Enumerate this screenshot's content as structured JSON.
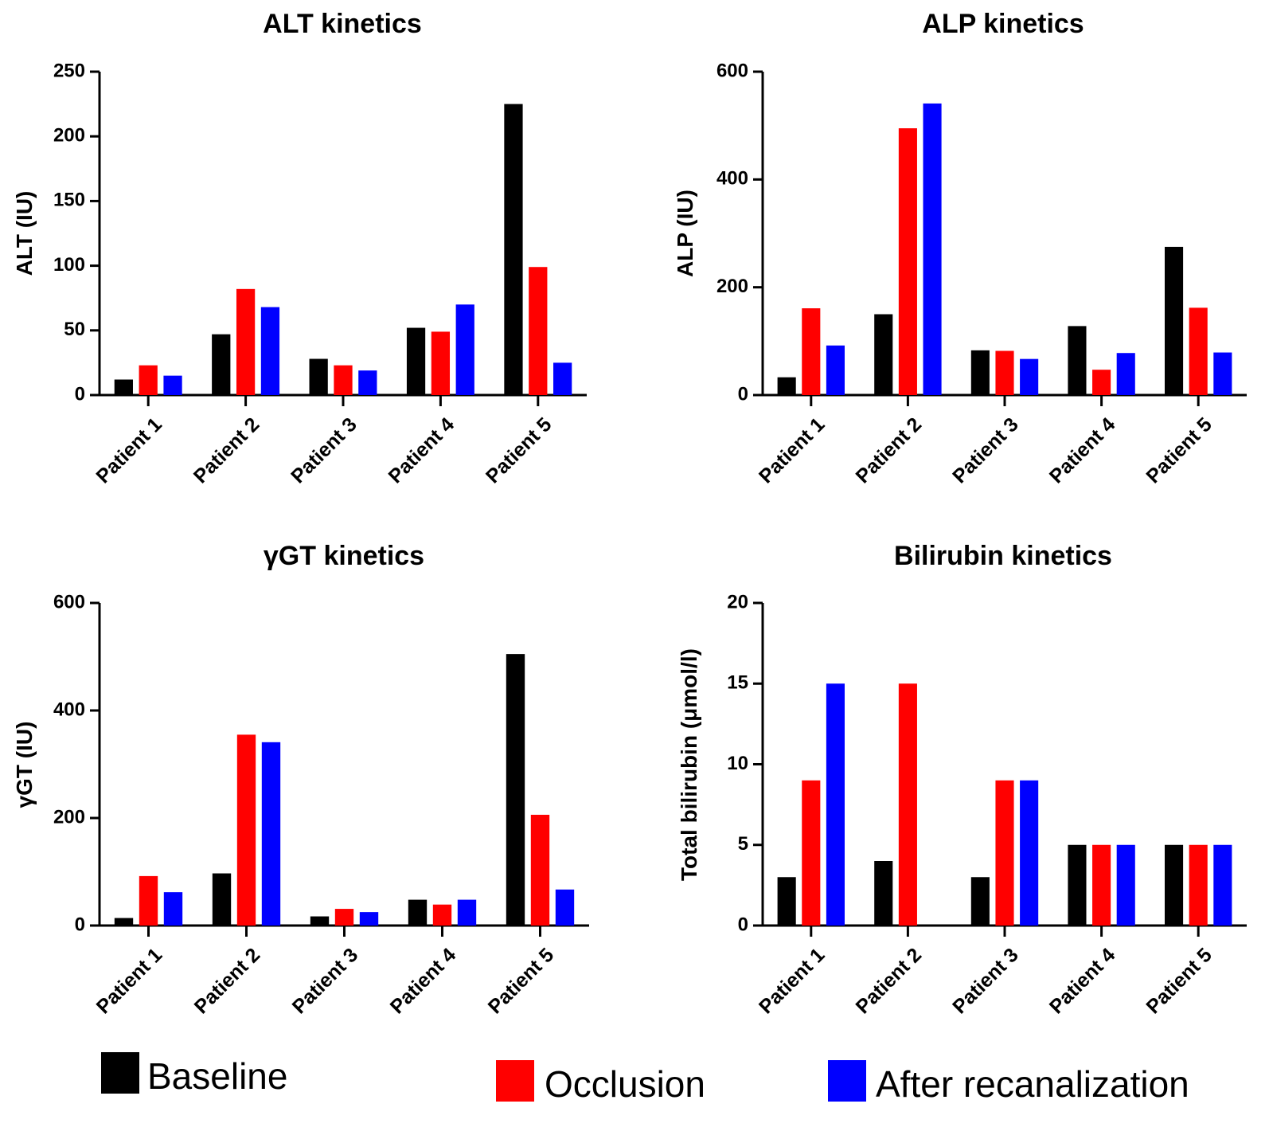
{
  "legend": [
    {
      "label": "Baseline",
      "color": "#000000"
    },
    {
      "label": "Occlusion",
      "color": "#ff0000"
    },
    {
      "label": "After recanalization",
      "color": "#0000ff"
    }
  ],
  "chart_data": [
    {
      "type": "bar",
      "title": "ALT kinetics",
      "ylabel": "ALT (IU)",
      "xlabel": "",
      "categories": [
        "Patient 1",
        "Patient 2",
        "Patient 3",
        "Patient 4",
        "Patient 5"
      ],
      "ylim": [
        0,
        250
      ],
      "yticks": [
        0,
        50,
        100,
        150,
        200,
        250
      ],
      "series": [
        {
          "name": "Baseline",
          "color": "#000000",
          "values": [
            12,
            47,
            28,
            52,
            225
          ]
        },
        {
          "name": "Occlusion",
          "color": "#ff0000",
          "values": [
            23,
            82,
            23,
            49,
            99
          ]
        },
        {
          "name": "After recanalization",
          "color": "#0000ff",
          "values": [
            15,
            68,
            19,
            70,
            25
          ]
        }
      ]
    },
    {
      "type": "bar",
      "title": "ALP kinetics",
      "ylabel": "ALP (IU)",
      "xlabel": "",
      "categories": [
        "Patient 1",
        "Patient 2",
        "Patient 3",
        "Patient 4",
        "Patient 5"
      ],
      "ylim": [
        0,
        600
      ],
      "yticks": [
        0,
        200,
        400,
        600
      ],
      "series": [
        {
          "name": "Baseline",
          "color": "#000000",
          "values": [
            33,
            150,
            83,
            128,
            275
          ]
        },
        {
          "name": "Occlusion",
          "color": "#ff0000",
          "values": [
            161,
            495,
            82,
            47,
            162
          ]
        },
        {
          "name": "After recanalization",
          "color": "#0000ff",
          "values": [
            92,
            541,
            67,
            78,
            79
          ]
        }
      ]
    },
    {
      "type": "bar",
      "title": "γGT kinetics",
      "ylabel": "γGT (IU)",
      "xlabel": "",
      "categories": [
        "Patient 1",
        "Patient 2",
        "Patient 3",
        "Patient 4",
        "Patient 5"
      ],
      "ylim": [
        0,
        600
      ],
      "yticks": [
        0,
        200,
        400,
        600
      ],
      "series": [
        {
          "name": "Baseline",
          "color": "#000000",
          "values": [
            14,
            97,
            17,
            48,
            505
          ]
        },
        {
          "name": "Occlusion",
          "color": "#ff0000",
          "values": [
            92,
            355,
            31,
            39,
            206
          ]
        },
        {
          "name": "After recanalization",
          "color": "#0000ff",
          "values": [
            62,
            341,
            25,
            48,
            67
          ]
        }
      ]
    },
    {
      "type": "bar",
      "title": "Bilirubin kinetics",
      "ylabel": "Total bilirubin (μmol/l)",
      "xlabel": "",
      "categories": [
        "Patient 1",
        "Patient 2",
        "Patient 3",
        "Patient 4",
        "Patient 5"
      ],
      "ylim": [
        0,
        20
      ],
      "yticks": [
        0,
        5,
        10,
        15,
        20
      ],
      "series": [
        {
          "name": "Baseline",
          "color": "#000000",
          "values": [
            3,
            4,
            3,
            5,
            5
          ]
        },
        {
          "name": "Occlusion",
          "color": "#ff0000",
          "values": [
            9,
            15,
            9,
            5,
            5
          ]
        },
        {
          "name": "After recanalization",
          "color": "#0000ff",
          "values": [
            15,
            0,
            9,
            5,
            5
          ]
        }
      ]
    }
  ]
}
